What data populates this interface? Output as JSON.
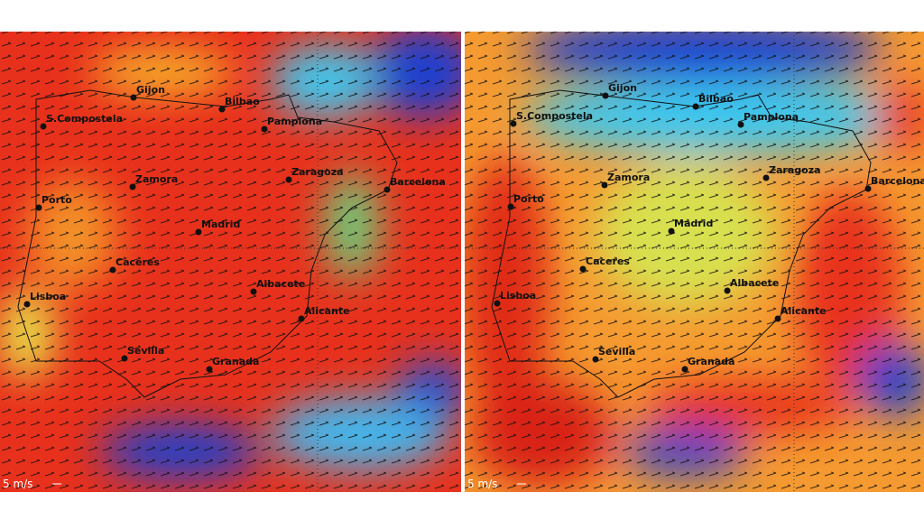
{
  "panels": [
    {
      "cities": [
        "Gijon",
        "Bilbao",
        "Pamplona",
        "S.Compostela",
        "Zamora",
        "Zaragoza",
        "Barcelona",
        "Porto",
        "Madrid",
        "Caceres",
        "Albacete",
        "Lisboa",
        "Alicante",
        "Sevilla",
        "Granada"
      ],
      "scale_label": "5 m/s"
    },
    {
      "cities": [
        "Gijon",
        "Bilbao",
        "Pamplona",
        "S.Compostela",
        "Zamora",
        "Zaragoza",
        "Barcelona",
        "Porto",
        "Madrid",
        "Caceres",
        "Albacete",
        "Lisboa",
        "Alicante",
        "Sevilla",
        "Granada"
      ],
      "scale_label": "5 m/s"
    }
  ]
}
